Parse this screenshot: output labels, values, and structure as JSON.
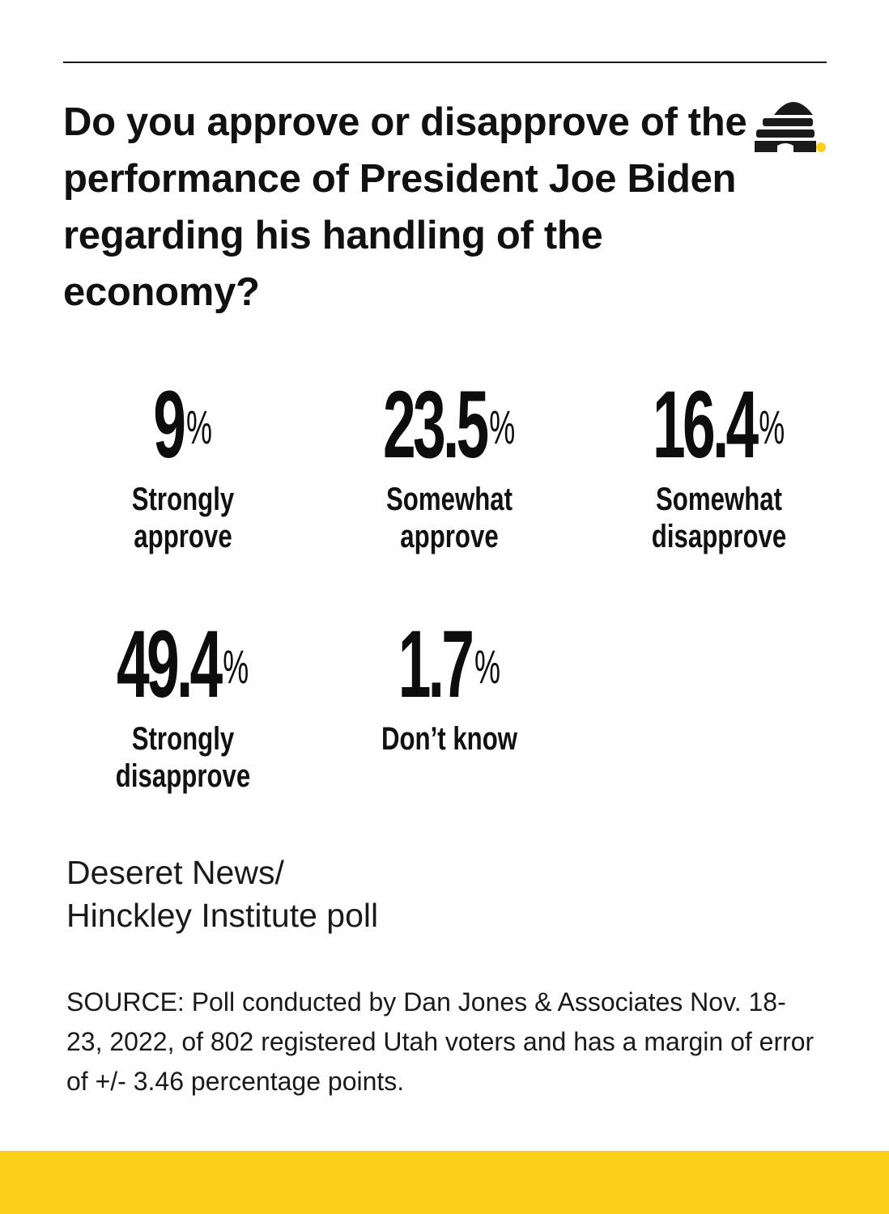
{
  "question": "Do you approve or disapprove of the performance of President Joe Biden regarding his handling of the economy?",
  "percent_symbol": "%",
  "credit": {
    "line1": "Deseret News/",
    "line2": "Hinckley Institute poll"
  },
  "source": "SOURCE: Poll conducted by Dan Jones & Associates Nov. 18-23, 2022, of 802 registered Utah voters and has a margin of error of +/- 3.46 percentage points.",
  "colors": {
    "accent": "#fccf1a",
    "text": "#111111",
    "logo": "#1a1a1a"
  },
  "logo_icon": "beehive-icon",
  "chart_data": {
    "type": "table",
    "title": "Do you approve or disapprove of the performance of President Joe Biden regarding his handling of the economy?",
    "unit": "%",
    "categories": [
      "Strongly approve",
      "Somewhat approve",
      "Somewhat disapprove",
      "Strongly disapprove",
      "Don’t know"
    ],
    "values": [
      "9",
      "23.5",
      "16.4",
      "49.4",
      "1.7"
    ],
    "items": [
      {
        "value": "9",
        "label_lines": [
          "Strongly",
          "approve"
        ]
      },
      {
        "value": "23.5",
        "label_lines": [
          "Somewhat",
          "approve"
        ]
      },
      {
        "value": "16.4",
        "label_lines": [
          "Somewhat",
          "disapprove"
        ]
      },
      {
        "value": "49.4",
        "label_lines": [
          "Strongly",
          "disapprove"
        ]
      },
      {
        "value": "1.7",
        "label_lines": [
          "Don’t know"
        ]
      }
    ]
  }
}
